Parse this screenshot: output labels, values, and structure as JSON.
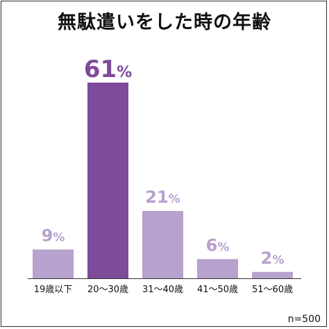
{
  "title": "無駄遣いをした時の年齢",
  "note": "n=500",
  "colors": {
    "bar": "#b7a1cd",
    "highlight": "#7e4a9a",
    "label": "#b7a1cd",
    "highlight_label": "#7e4a9a",
    "axis": "#333333"
  },
  "chart_data": {
    "type": "bar",
    "title": "無駄遣いをした時の年齢",
    "categories": [
      "19歳以下",
      "20〜30歳",
      "31〜40歳",
      "41〜50歳",
      "51〜60歳"
    ],
    "values": [
      9,
      61,
      21,
      6,
      2
    ],
    "value_suffix": "%",
    "highlight_index": 1,
    "ylim": [
      0,
      61
    ],
    "grid": false,
    "legend": "none"
  }
}
